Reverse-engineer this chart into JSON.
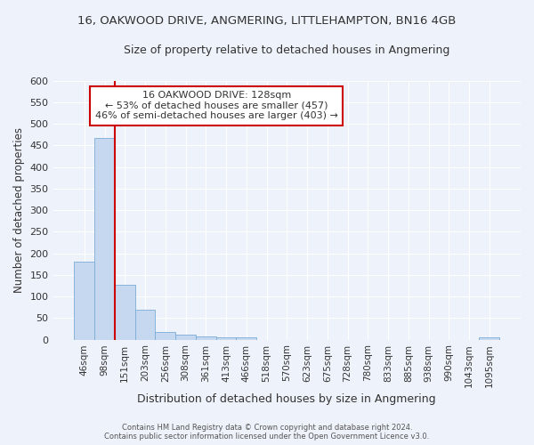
{
  "title": "16, OAKWOOD DRIVE, ANGMERING, LITTLEHAMPTON, BN16 4GB",
  "subtitle": "Size of property relative to detached houses in Angmering",
  "xlabel": "Distribution of detached houses by size in Angmering",
  "ylabel": "Number of detached properties",
  "bar_color": "#c5d8f0",
  "bar_edge_color": "#7aacd6",
  "background_color": "#eef2fa",
  "grid_color": "#ffffff",
  "categories": [
    "46sqm",
    "98sqm",
    "151sqm",
    "203sqm",
    "256sqm",
    "308sqm",
    "361sqm",
    "413sqm",
    "466sqm",
    "518sqm",
    "570sqm",
    "623sqm",
    "675sqm",
    "728sqm",
    "780sqm",
    "833sqm",
    "885sqm",
    "938sqm",
    "990sqm",
    "1043sqm",
    "1095sqm"
  ],
  "values": [
    180,
    468,
    126,
    70,
    18,
    12,
    7,
    5,
    5,
    0,
    0,
    0,
    0,
    0,
    0,
    0,
    0,
    0,
    0,
    0,
    6
  ],
  "ylim": [
    0,
    600
  ],
  "yticks": [
    0,
    50,
    100,
    150,
    200,
    250,
    300,
    350,
    400,
    450,
    500,
    550,
    600
  ],
  "vline_x_idx": 2,
  "vline_color": "#cc0000",
  "annotation_title": "16 OAKWOOD DRIVE: 128sqm",
  "annotation_line1": "← 53% of detached houses are smaller (457)",
  "annotation_line2": "46% of semi-detached houses are larger (403) →",
  "annotation_box_color": "#ffffff",
  "annotation_border_color": "#cc0000",
  "footer1": "Contains HM Land Registry data © Crown copyright and database right 2024.",
  "footer2": "Contains public sector information licensed under the Open Government Licence v3.0."
}
